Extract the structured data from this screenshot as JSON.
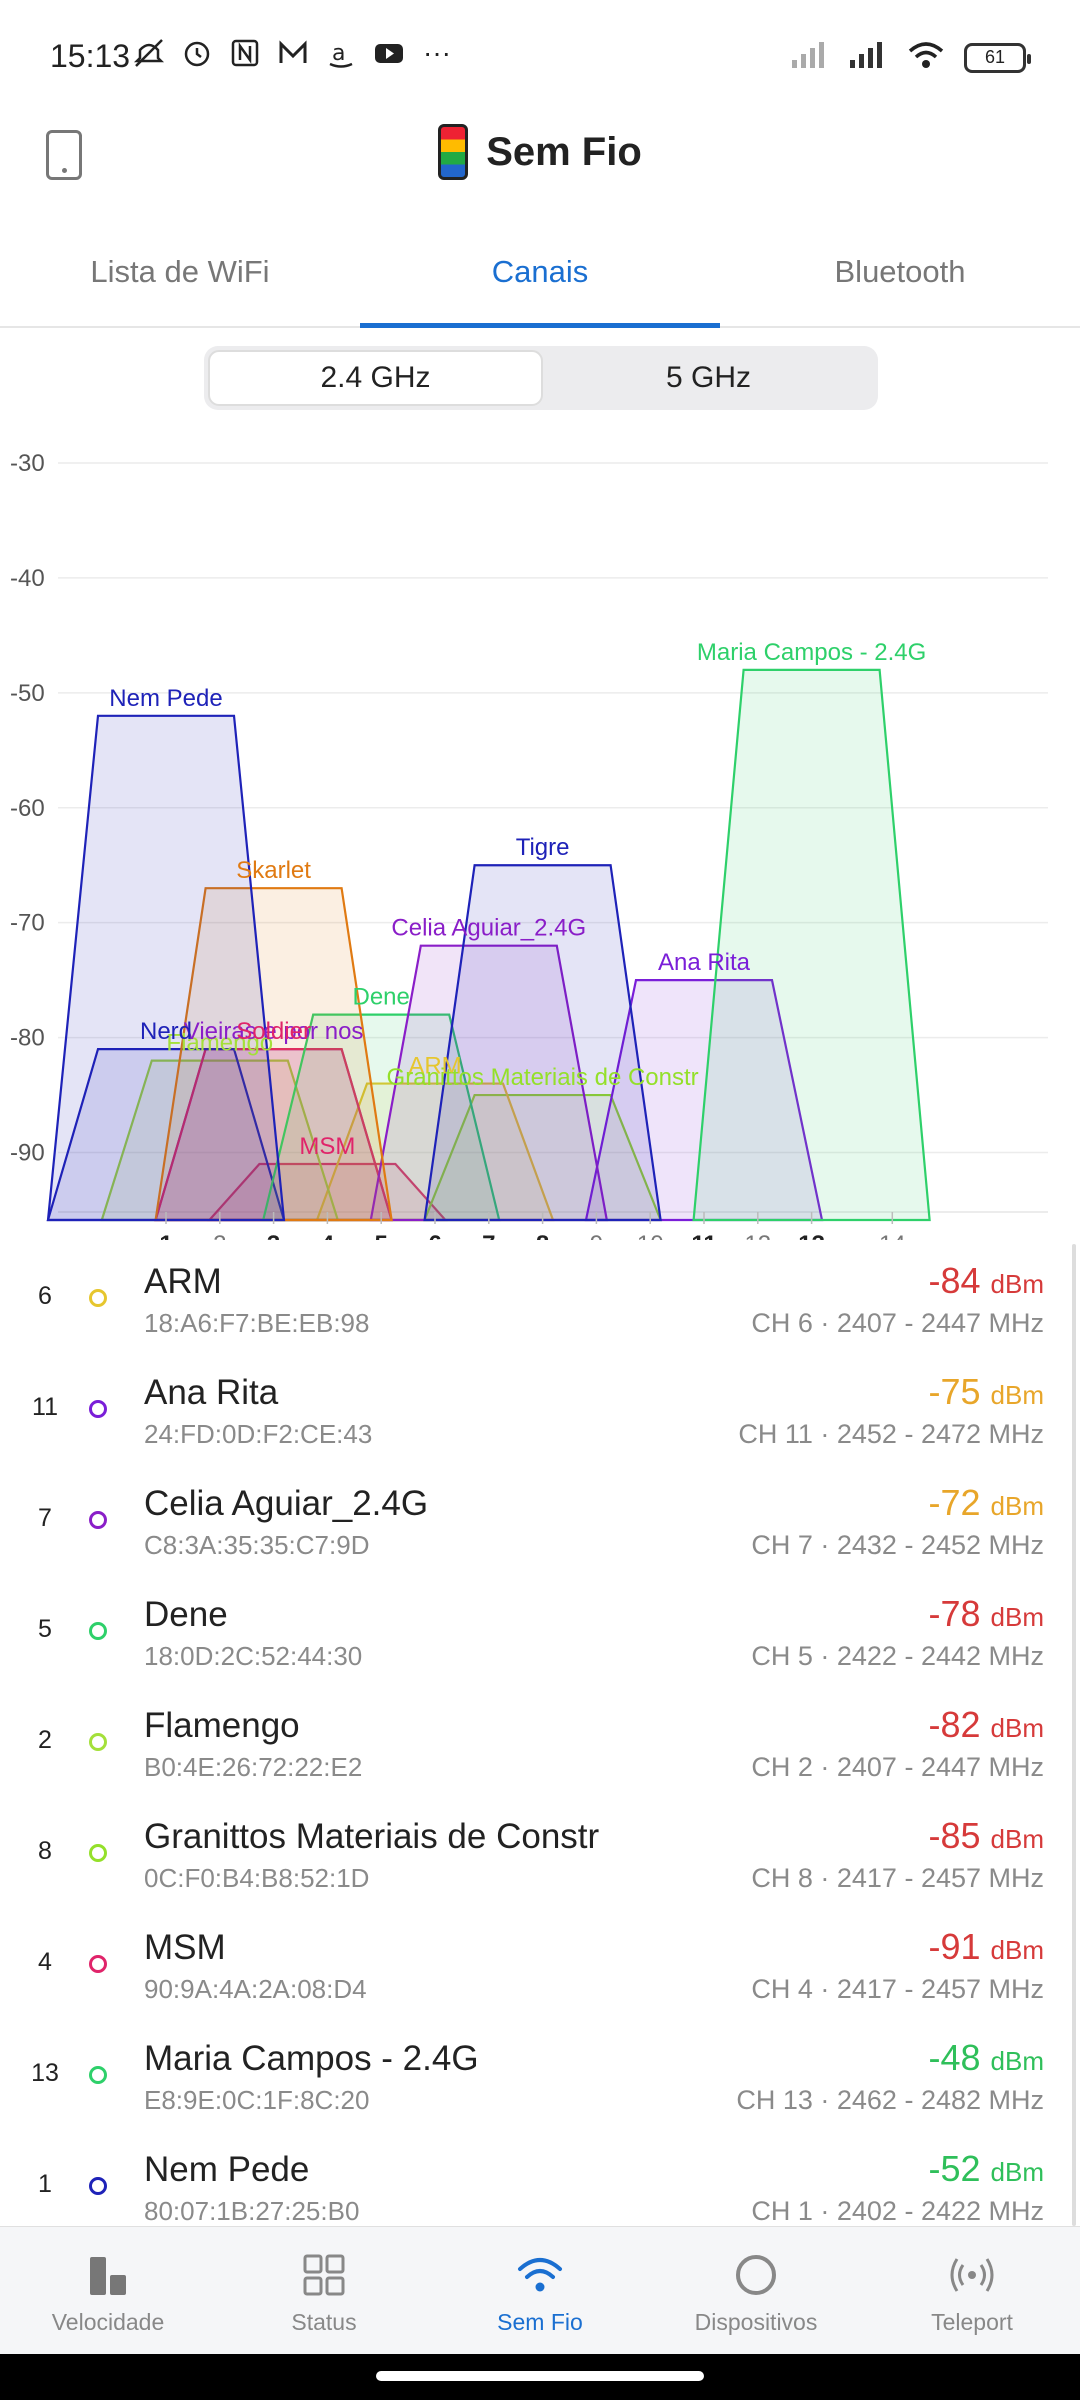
{
  "status_bar": {
    "time": "15:13",
    "battery": "61",
    "icons": [
      "mute-icon",
      "alarm-icon",
      "nfc-icon",
      "mail-icon",
      "amazon-icon",
      "youtube-icon",
      "more-icon"
    ]
  },
  "app_bar": {
    "title": "Sem Fio"
  },
  "tabs": [
    {
      "label": "Lista de WiFi",
      "active": false
    },
    {
      "label": "Canais",
      "active": true
    },
    {
      "label": "Bluetooth",
      "active": false
    }
  ],
  "band_toggle": {
    "options": [
      "2.4 GHz",
      "5 GHz"
    ],
    "selected": "2.4 GHz"
  },
  "chart_data": {
    "type": "area",
    "y_ticks": [
      "-30",
      "-40",
      "-50",
      "-60",
      "-70",
      "-80",
      "-90"
    ],
    "ylim": [
      -95,
      -28
    ],
    "x_ticks": [
      {
        "label": "1",
        "ch": 1,
        "bold": true
      },
      {
        "label": "2",
        "ch": 2,
        "bold": false
      },
      {
        "label": "3",
        "ch": 3,
        "bold": true
      },
      {
        "label": "4",
        "ch": 4,
        "bold": true
      },
      {
        "label": "5",
        "ch": 5,
        "bold": true
      },
      {
        "label": "6",
        "ch": 6,
        "bold": true
      },
      {
        "label": "7",
        "ch": 7,
        "bold": true
      },
      {
        "label": "8",
        "ch": 8,
        "bold": true
      },
      {
        "label": "9",
        "ch": 9,
        "bold": false
      },
      {
        "label": "10",
        "ch": 10,
        "bold": false
      },
      {
        "label": "11",
        "ch": 11,
        "bold": true
      },
      {
        "label": "12",
        "ch": 12,
        "bold": false
      },
      {
        "label": "13",
        "ch": 13,
        "bold": true
      },
      {
        "label": "14",
        "ch": 14.5,
        "bold": false
      }
    ],
    "series": [
      {
        "name": "Nem Pede",
        "ch": 1,
        "dbm": -52,
        "color": "#1e22b8"
      },
      {
        "name": "Skarlet",
        "ch": 3,
        "dbm": -67,
        "color": "#e07a12"
      },
      {
        "name": "Tigre",
        "ch": 8,
        "dbm": -65,
        "color": "#1e22b8"
      },
      {
        "name": "Celia Aguiar_2.4G",
        "ch": 7,
        "dbm": -72,
        "color": "#8a1ec8"
      },
      {
        "name": "Ana Rita",
        "ch": 11,
        "dbm": -75,
        "color": "#7a1ed8"
      },
      {
        "name": "Maria Campos - 2.4G",
        "ch": 13,
        "dbm": -48,
        "color": "#2ed06a"
      },
      {
        "name": "Dene",
        "ch": 5,
        "dbm": -78,
        "color": "#2ed06a"
      },
      {
        "name": "Flamengo",
        "ch": 2,
        "dbm": -82,
        "color": "#a4e03a"
      },
      {
        "name": "ARM",
        "ch": 6,
        "dbm": -84,
        "color": "#e6c62e"
      },
      {
        "name": "Granittos Materiais de Constr",
        "ch": 8,
        "dbm": -85,
        "color": "#94e02a"
      },
      {
        "name": "MSM",
        "ch": 4,
        "dbm": -91,
        "color": "#e0246a"
      },
      {
        "name": "Vieiras e por nos",
        "ch": 3,
        "dbm": -81,
        "color": "#8a1ec8"
      },
      {
        "name": "Soldier",
        "ch": 3,
        "dbm": -81,
        "color": "#e0246a"
      },
      {
        "name": "Nerd",
        "ch": 1,
        "dbm": -81,
        "color": "#1e22b8"
      }
    ]
  },
  "networks": [
    {
      "ch": "6",
      "ssid": "ARM",
      "mac": "18:A6:F7:BE:EB:98",
      "dbm": "-84",
      "unit": "dBm",
      "freq": "CH 6 · 2407 - 2447 MHz",
      "dot": "#e6c62e",
      "sig_color": "#d63a3a"
    },
    {
      "ch": "11",
      "ssid": "Ana Rita",
      "mac": "24:FD:0D:F2:CE:43",
      "dbm": "-75",
      "unit": "dBm",
      "freq": "CH 11 · 2452 - 2472 MHz",
      "dot": "#7a1ed8",
      "sig_color": "#e8a62a"
    },
    {
      "ch": "7",
      "ssid": "Celia Aguiar_2.4G",
      "mac": "C8:3A:35:35:C7:9D",
      "dbm": "-72",
      "unit": "dBm",
      "freq": "CH 7 · 2432 - 2452 MHz",
      "dot": "#8a1ec8",
      "sig_color": "#e8a62a"
    },
    {
      "ch": "5",
      "ssid": "Dene",
      "mac": "18:0D:2C:52:44:30",
      "dbm": "-78",
      "unit": "dBm",
      "freq": "CH 5 · 2422 - 2442 MHz",
      "dot": "#2ed06a",
      "sig_color": "#d63a3a"
    },
    {
      "ch": "2",
      "ssid": "Flamengo",
      "mac": "B0:4E:26:72:22:E2",
      "dbm": "-82",
      "unit": "dBm",
      "freq": "CH 2 · 2407 - 2447 MHz",
      "dot": "#a4e03a",
      "sig_color": "#d63a3a"
    },
    {
      "ch": "8",
      "ssid": "Granittos Materiais de Constr",
      "mac": "0C:F0:B4:B8:52:1D",
      "dbm": "-85",
      "unit": "dBm",
      "freq": "CH 8 · 2417 - 2457 MHz",
      "dot": "#94e02a",
      "sig_color": "#d63a3a"
    },
    {
      "ch": "4",
      "ssid": "MSM",
      "mac": "90:9A:4A:2A:08:D4",
      "dbm": "-91",
      "unit": "dBm",
      "freq": "CH 4 · 2417 - 2457 MHz",
      "dot": "#e0246a",
      "sig_color": "#d63a3a"
    },
    {
      "ch": "13",
      "ssid": "Maria Campos - 2.4G",
      "mac": "E8:9E:0C:1F:8C:20",
      "dbm": "-48",
      "unit": "dBm",
      "freq": "CH 13 · 2462 - 2482 MHz",
      "dot": "#2ed06a",
      "sig_color": "#2fbf5a"
    },
    {
      "ch": "1",
      "ssid": "Nem Pede",
      "mac": "80:07:1B:27:25:B0",
      "dbm": "-52",
      "unit": "dBm",
      "freq": "CH 1 · 2402 - 2422 MHz",
      "dot": "#1e22b8",
      "sig_color": "#2fbf5a"
    }
  ],
  "bottom_nav": [
    {
      "label": "Velocidade",
      "icon": "bar-chart-icon",
      "active": false
    },
    {
      "label": "Status",
      "icon": "grid-icon",
      "active": false
    },
    {
      "label": "Sem Fio",
      "icon": "wifi-icon",
      "active": true
    },
    {
      "label": "Dispositivos",
      "icon": "circle-icon",
      "active": false
    },
    {
      "label": "Teleport",
      "icon": "teleport-icon",
      "active": false
    }
  ]
}
